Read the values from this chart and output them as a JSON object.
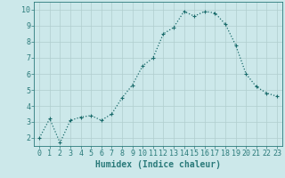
{
  "x": [
    0,
    1,
    2,
    3,
    4,
    5,
    6,
    7,
    8,
    9,
    10,
    11,
    12,
    13,
    14,
    15,
    16,
    17,
    18,
    19,
    20,
    21,
    22,
    23
  ],
  "y": [
    2.0,
    3.2,
    1.7,
    3.1,
    3.3,
    3.4,
    3.1,
    3.5,
    4.5,
    5.3,
    6.5,
    7.0,
    8.5,
    8.9,
    9.9,
    9.6,
    9.9,
    9.8,
    9.1,
    7.8,
    6.0,
    5.2,
    4.8,
    4.6
  ],
  "line_color": "#1a6b6b",
  "marker": "+",
  "marker_size": 3,
  "bg_color": "#cce8ea",
  "grid_color": "#b0cece",
  "xlabel": "Humidex (Indice chaleur)",
  "xlim": [
    -0.5,
    23.5
  ],
  "ylim": [
    1.5,
    10.5
  ],
  "yticks": [
    2,
    3,
    4,
    5,
    6,
    7,
    8,
    9,
    10
  ],
  "xticks": [
    0,
    1,
    2,
    3,
    4,
    5,
    6,
    7,
    8,
    9,
    10,
    11,
    12,
    13,
    14,
    15,
    16,
    17,
    18,
    19,
    20,
    21,
    22,
    23
  ],
  "xlabel_fontsize": 7,
  "tick_fontsize": 6,
  "line_width": 0.9,
  "spine_color": "#2a7a7a",
  "tick_color": "#2a7a7a"
}
